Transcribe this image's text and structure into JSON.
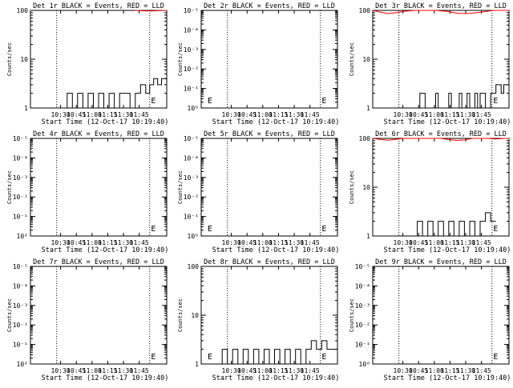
{
  "x_tick_labels": [
    "10:30",
    "10:45",
    "11:00",
    "11:15",
    "11:30",
    "11:45"
  ],
  "xlabel": "Start Time (12-Oct-17 10:19:40)",
  "ylabel": "Counts/sec",
  "colors": {
    "events": "#000000",
    "lld": "#ff0000",
    "axes": "#000000",
    "background": "#ffffff"
  },
  "chart_data": [
    {
      "type": "line",
      "title": "Det 1r BLACK = Events, RED = LLD",
      "yscale": "log",
      "y_tick_labels": [
        "1",
        "10",
        "100"
      ],
      "ylim": [
        1,
        100
      ],
      "series": [
        {
          "name": "Events",
          "color": "#000000",
          "x": [
            1.0,
            1.4,
            1.4,
            1.6,
            1.6,
            1.8,
            1.8,
            2.0,
            2.0,
            2.2,
            2.2,
            2.4,
            2.4,
            2.6,
            2.6,
            2.8,
            2.8,
            3.0,
            3.0,
            3.2,
            3.2,
            3.4,
            3.4,
            3.6,
            3.6,
            3.8,
            3.8,
            4.0,
            4.0,
            4.2,
            4.2,
            4.4,
            4.4,
            4.55,
            4.55,
            4.7,
            4.7,
            4.85,
            4.85,
            5.0,
            5.0,
            5.2
          ],
          "y": [
            1,
            1,
            2,
            2,
            1,
            1,
            2,
            2,
            1,
            1,
            2,
            2,
            1,
            1,
            2,
            2,
            1,
            1,
            2,
            2,
            1,
            1,
            2,
            2,
            2,
            2,
            1,
            1,
            2,
            2,
            3,
            3,
            2,
            2,
            3,
            3,
            4,
            4,
            3,
            3,
            4,
            4
          ]
        },
        {
          "name": "LLD",
          "color": "#ff0000",
          "x": [
            4.0,
            4.3,
            4.6,
            4.9,
            5.2
          ],
          "y": [
            100,
            98,
            97,
            99,
            100
          ]
        }
      ],
      "annotations": [
        "E"
      ]
    },
    {
      "type": "line",
      "title": "Det 2r BLACK = Events, RED = LLD",
      "yscale": "log",
      "y_tick_labels": [
        "10⁰",
        "10⁻¹",
        "10⁻²",
        "10⁻³",
        "10⁻⁴",
        "10⁻⁵"
      ],
      "ylim": [
        1,
        100000
      ],
      "series": [],
      "annotations": [
        "E",
        "E"
      ]
    },
    {
      "type": "line",
      "title": "Det 3r BLACK = Events, RED = LLD",
      "yscale": "log",
      "y_tick_labels": [
        "1",
        "10",
        "100"
      ],
      "ylim": [
        1,
        100
      ],
      "series": [
        {
          "name": "Events",
          "color": "#000000",
          "x": [
            1.8,
            1.8,
            2.0,
            2.0,
            2.4,
            2.4,
            2.5,
            2.5,
            2.9,
            2.9,
            3.0,
            3.0,
            3.3,
            3.3,
            3.4,
            3.4,
            3.6,
            3.6,
            3.7,
            3.7,
            3.9,
            3.9,
            4.0,
            4.0,
            4.1,
            4.1,
            4.3,
            4.3,
            4.5,
            4.5,
            4.7,
            4.7,
            4.9,
            4.9,
            5.0,
            5.0,
            5.2
          ],
          "y": [
            1,
            2,
            2,
            1,
            1,
            2,
            2,
            1,
            1,
            2,
            2,
            1,
            1,
            2,
            2,
            1,
            1,
            2,
            2,
            1,
            1,
            2,
            2,
            1,
            1,
            2,
            2,
            1,
            1,
            2,
            2,
            3,
            3,
            2,
            2,
            3,
            3
          ]
        },
        {
          "name": "LLD",
          "color": "#ff0000",
          "x": [
            0.0,
            0.3,
            0.6,
            0.9,
            1.2,
            1.6,
            2.0,
            2.4,
            2.8,
            3.2,
            3.6,
            4.0,
            4.3,
            4.6,
            5.0,
            5.2
          ],
          "y": [
            100,
            92,
            86,
            90,
            96,
            100,
            100,
            100,
            96,
            88,
            86,
            90,
            95,
            100,
            100,
            100
          ]
        }
      ],
      "annotations": [
        "E"
      ]
    },
    {
      "type": "line",
      "title": "Det 4r BLACK = Events, RED = LLD",
      "yscale": "log",
      "y_tick_labels": [
        "10⁰",
        "10⁻¹",
        "10⁻²",
        "10⁻³",
        "10⁻⁴",
        "10⁻⁵"
      ],
      "ylim": [
        1,
        100000
      ],
      "series": [],
      "annotations": [
        "E"
      ]
    },
    {
      "type": "line",
      "title": "Det 5r BLACK = Events, RED = LLD",
      "yscale": "log",
      "y_tick_labels": [
        "10⁰",
        "10⁻¹",
        "10⁻²",
        "10⁻³",
        "10⁻⁴",
        "10⁻⁵"
      ],
      "ylim": [
        1,
        100000
      ],
      "series": [],
      "annotations": [
        "E",
        "E"
      ]
    },
    {
      "type": "line",
      "title": "Det 6r BLACK = Events, RED = LLD",
      "yscale": "log",
      "y_tick_labels": [
        "1",
        "10",
        "100"
      ],
      "ylim": [
        1,
        100
      ],
      "series": [
        {
          "name": "Events",
          "color": "#000000",
          "x": [
            1.7,
            1.7,
            1.9,
            1.9,
            2.1,
            2.1,
            2.3,
            2.3,
            2.5,
            2.5,
            2.7,
            2.7,
            2.9,
            2.9,
            3.1,
            3.1,
            3.3,
            3.3,
            3.5,
            3.5,
            3.7,
            3.7,
            3.9,
            3.9,
            4.1,
            4.1,
            4.3,
            4.3,
            4.5,
            4.5,
            4.7
          ],
          "y": [
            1,
            2,
            2,
            1,
            1,
            2,
            2,
            1,
            1,
            2,
            2,
            1,
            1,
            2,
            2,
            1,
            1,
            2,
            2,
            1,
            1,
            2,
            2,
            1,
            1,
            2,
            2,
            3,
            3,
            2,
            2
          ]
        },
        {
          "name": "LLD",
          "color": "#ff0000",
          "x": [
            0.0,
            0.3,
            0.6,
            0.9,
            1.2,
            2.6,
            2.9,
            3.2,
            3.5,
            3.8,
            4.4,
            4.7,
            5.0,
            5.2
          ],
          "y": [
            100,
            95,
            92,
            96,
            100,
            100,
            95,
            91,
            93,
            100,
            100,
            97,
            100,
            100
          ]
        }
      ],
      "annotations": [
        "E"
      ]
    },
    {
      "type": "line",
      "title": "Det 7r BLACK = Events, RED = LLD",
      "yscale": "log",
      "y_tick_labels": [
        "10⁰",
        "10⁻¹",
        "10⁻²",
        "10⁻³",
        "10⁻⁴",
        "10⁻⁵"
      ],
      "ylim": [
        1,
        100000
      ],
      "series": [],
      "annotations": [
        "E"
      ]
    },
    {
      "type": "line",
      "title": "Det 8r BLACK = Events, RED = LLD",
      "yscale": "log",
      "y_tick_labels": [
        "1",
        "10",
        "100"
      ],
      "ylim": [
        1,
        100
      ],
      "series": [
        {
          "name": "Events",
          "color": "#000000",
          "x": [
            0.8,
            0.8,
            1.0,
            1.0,
            1.2,
            1.2,
            1.4,
            1.4,
            1.6,
            1.6,
            1.8,
            1.8,
            2.0,
            2.0,
            2.2,
            2.2,
            2.4,
            2.4,
            2.6,
            2.6,
            2.8,
            2.8,
            3.0,
            3.0,
            3.2,
            3.2,
            3.4,
            3.4,
            3.6,
            3.6,
            3.8,
            3.8,
            4.0,
            4.0,
            4.2,
            4.2,
            4.4,
            4.4,
            4.6,
            4.6,
            4.8,
            4.8,
            5.0,
            5.2
          ],
          "y": [
            1,
            2,
            2,
            1,
            1,
            2,
            2,
            1,
            1,
            2,
            2,
            1,
            1,
            2,
            2,
            1,
            1,
            2,
            2,
            1,
            1,
            2,
            2,
            1,
            1,
            2,
            2,
            1,
            1,
            2,
            2,
            1,
            1,
            2,
            2,
            3,
            3,
            2,
            2,
            3,
            3,
            2,
            2,
            2
          ]
        }
      ],
      "annotations": [
        "E",
        "E"
      ]
    },
    {
      "type": "line",
      "title": "Det 9r BLACK = Events, RED = LLD",
      "yscale": "log",
      "y_tick_labels": [
        "10⁰",
        "10⁻¹",
        "10⁻²",
        "10⁻³",
        "10⁻⁴",
        "10⁻⁵"
      ],
      "ylim": [
        1,
        100000
      ],
      "series": [],
      "annotations": [
        "E"
      ]
    }
  ]
}
